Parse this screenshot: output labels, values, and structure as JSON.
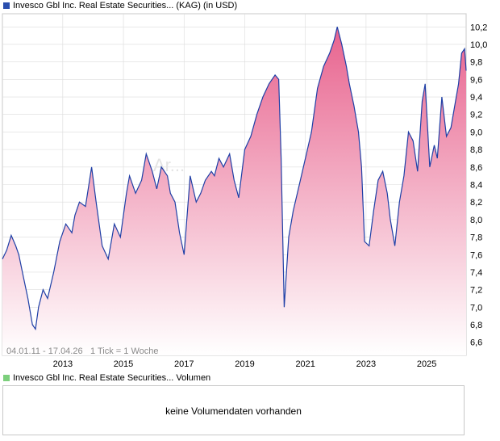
{
  "colors": {
    "price_legend": "#2a4fae",
    "volume_legend": "#7ccf7c",
    "line": "#1f3fa6",
    "fill_top": "#e8638e",
    "fill_bottom": "#ffffff",
    "grid": "#dcdcdc",
    "watermark": "#e4e4e4"
  },
  "chart_data": [
    {
      "type": "area",
      "title": "Invesco Gbl Inc. Real Estate Securities... (KAG)  (in USD)",
      "legend": "Invesco Gbl Inc. Real Estate Securities... (KAG)  (in USD)",
      "date_range_label": "04.01.11 - 17.04.26",
      "tick_label": "1 Tick = 1 Woche",
      "watermark": "Ar...",
      "x_range": [
        2011.01,
        2026.3
      ],
      "y_range": [
        6.45,
        10.35
      ],
      "y_ticks": [
        "6,6",
        "6,8",
        "7,0",
        "7,2",
        "7,4",
        "7,6",
        "7,8",
        "8,0",
        "8,2",
        "8,4",
        "8,6",
        "8,8",
        "9,0",
        "9,2",
        "9,4",
        "9,6",
        "9,8",
        "10,0",
        "10,2"
      ],
      "y_tick_values": [
        6.6,
        6.8,
        7.0,
        7.2,
        7.4,
        7.6,
        7.8,
        8.0,
        8.2,
        8.4,
        8.6,
        8.8,
        9.0,
        9.2,
        9.4,
        9.6,
        9.8,
        10.0,
        10.2
      ],
      "x_ticks": [
        "2013",
        "2015",
        "2017",
        "2019",
        "2021",
        "2023",
        "2025"
      ],
      "x_tick_values": [
        2013.0,
        2015.0,
        2017.0,
        2019.0,
        2021.0,
        2023.0,
        2025.0
      ],
      "series": [
        {
          "name": "Kurs",
          "x": [
            2011.01,
            2011.15,
            2011.3,
            2011.45,
            2011.55,
            2011.7,
            2011.85,
            2012.0,
            2012.1,
            2012.2,
            2012.35,
            2012.5,
            2012.7,
            2012.9,
            2013.1,
            2013.3,
            2013.4,
            2013.55,
            2013.75,
            2013.95,
            2014.1,
            2014.3,
            2014.5,
            2014.7,
            2014.9,
            2015.1,
            2015.2,
            2015.4,
            2015.6,
            2015.75,
            2015.95,
            2016.1,
            2016.25,
            2016.45,
            2016.55,
            2016.7,
            2016.85,
            2017.0,
            2017.2,
            2017.4,
            2017.55,
            2017.7,
            2017.9,
            2018.0,
            2018.15,
            2018.3,
            2018.5,
            2018.65,
            2018.8,
            2019.0,
            2019.2,
            2019.4,
            2019.6,
            2019.8,
            2020.0,
            2020.12,
            2020.2,
            2020.3,
            2020.45,
            2020.6,
            2020.8,
            2021.0,
            2021.2,
            2021.4,
            2021.6,
            2021.8,
            2021.95,
            2022.05,
            2022.2,
            2022.35,
            2022.45,
            2022.6,
            2022.75,
            2022.85,
            2022.95,
            2023.1,
            2023.25,
            2023.4,
            2023.55,
            2023.7,
            2023.8,
            2023.95,
            2024.1,
            2024.25,
            2024.4,
            2024.55,
            2024.7,
            2024.85,
            2024.95,
            2025.1,
            2025.25,
            2025.35,
            2025.5,
            2025.65,
            2025.8,
            2025.95,
            2026.05,
            2026.15,
            2026.25,
            2026.3
          ],
          "values": [
            7.55,
            7.65,
            7.82,
            7.7,
            7.6,
            7.35,
            7.1,
            6.8,
            6.75,
            7.0,
            7.2,
            7.1,
            7.4,
            7.75,
            7.95,
            7.85,
            8.05,
            8.2,
            8.15,
            8.6,
            8.2,
            7.7,
            7.55,
            7.95,
            7.8,
            8.3,
            8.5,
            8.3,
            8.45,
            8.75,
            8.55,
            8.35,
            8.6,
            8.5,
            8.3,
            8.2,
            7.85,
            7.6,
            8.5,
            8.2,
            8.3,
            8.45,
            8.55,
            8.5,
            8.7,
            8.6,
            8.75,
            8.45,
            8.25,
            8.8,
            8.95,
            9.2,
            9.4,
            9.55,
            9.65,
            9.6,
            8.7,
            7.0,
            7.8,
            8.1,
            8.4,
            8.7,
            9.0,
            9.5,
            9.75,
            9.9,
            10.05,
            10.2,
            10.0,
            9.75,
            9.55,
            9.3,
            9.0,
            8.6,
            7.75,
            7.7,
            8.1,
            8.45,
            8.55,
            8.3,
            8.0,
            7.7,
            8.2,
            8.5,
            9.0,
            8.9,
            8.55,
            9.35,
            9.55,
            8.6,
            8.85,
            8.7,
            9.4,
            8.95,
            9.05,
            9.35,
            9.55,
            9.9,
            9.95,
            9.7
          ]
        }
      ]
    },
    {
      "type": "bar",
      "title": "Invesco Gbl Inc. Real Estate Securities... Volumen",
      "legend": "Invesco Gbl Inc. Real Estate Securities... Volumen",
      "message": "keine Volumendaten vorhanden",
      "series": []
    }
  ]
}
